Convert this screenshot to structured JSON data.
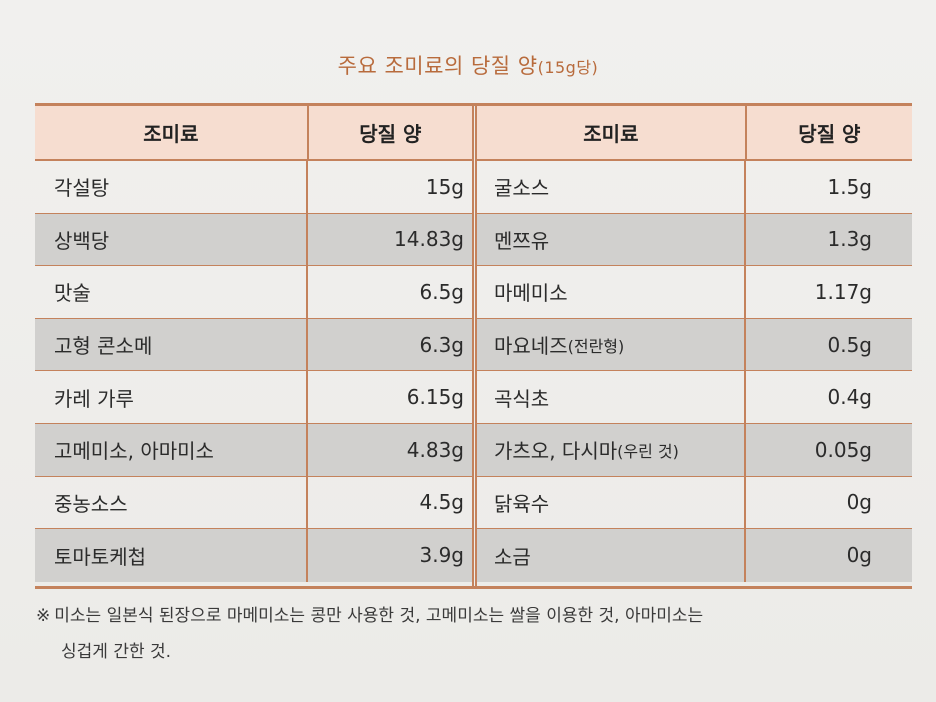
{
  "title": {
    "main": "주요 조미료의 당질 양",
    "sub": "(15g당)"
  },
  "headers": {
    "name": "조미료",
    "amount": "당질 양"
  },
  "left_rows": [
    {
      "name": "각설탕",
      "amount": "15g"
    },
    {
      "name": "상백당",
      "amount": "14.83g"
    },
    {
      "name": "맛술",
      "amount": "6.5g"
    },
    {
      "name": "고형 콘소메",
      "amount": "6.3g"
    },
    {
      "name": "카레 가루",
      "amount": "6.15g"
    },
    {
      "name": "고메미소, 아마미소",
      "amount": "4.83g"
    },
    {
      "name": "중농소스",
      "amount": "4.5g"
    },
    {
      "name": "토마토케첩",
      "amount": "3.9g"
    }
  ],
  "right_rows": [
    {
      "name": "굴소스",
      "note": "",
      "amount": "1.5g"
    },
    {
      "name": "멘쯔유",
      "note": "",
      "amount": "1.3g"
    },
    {
      "name": "마메미소",
      "note": "",
      "amount": "1.17g"
    },
    {
      "name": "마요네즈",
      "note": "(전란형)",
      "amount": "0.5g"
    },
    {
      "name": "곡식초",
      "note": "",
      "amount": "0.4g"
    },
    {
      "name": "가츠오, 다시마",
      "note": "(우린 것)",
      "amount": "0.05g"
    },
    {
      "name": "닭육수",
      "note": "",
      "amount": "0g"
    },
    {
      "name": "소금",
      "note": "",
      "amount": "0g"
    }
  ],
  "footnote": {
    "mark": "※",
    "line1": "미소는 일본식 된장으로 마메미소는 콩만 사용한 것, 고메미소는 쌀을 이용한 것, 아마미소는",
    "line2": "싱겁게 간한 것."
  }
}
